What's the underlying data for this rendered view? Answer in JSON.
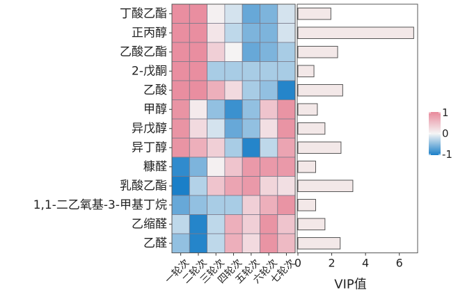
{
  "chart_data": [
    {
      "type": "heatmap",
      "rows": [
        "丁酸乙酯",
        "正丙醇",
        "乙酸乙酯",
        "2-戊酮",
        "乙酸",
        "甲醇",
        "异戊醇",
        "异丁醇",
        "糠醛",
        "乳酸乙酯",
        "1,1-二乙氧基-3-甲基丁烷",
        "乙缩醛",
        "乙醛"
      ],
      "columns": [
        "一轮次",
        "二轮次",
        "三轮次",
        "四轮次",
        "五轮次",
        "六轮次",
        "七轮次"
      ],
      "values": [
        [
          0.95,
          0.95,
          0.05,
          -0.15,
          -0.65,
          -0.55,
          -0.15
        ],
        [
          0.95,
          0.95,
          0.15,
          -0.25,
          -0.55,
          -0.55,
          -0.15
        ],
        [
          0.95,
          0.95,
          0.35,
          0.02,
          -0.65,
          -0.55,
          -0.35
        ],
        [
          0.95,
          0.95,
          -0.35,
          -0.35,
          -0.35,
          -0.35,
          -0.35
        ],
        [
          0.95,
          0.95,
          0.65,
          0.25,
          -0.35,
          -0.45,
          -0.95
        ],
        [
          0.9,
          0.1,
          -0.45,
          -0.85,
          -0.45,
          0.45,
          0.9
        ],
        [
          0.9,
          0.25,
          -0.15,
          -0.65,
          -0.45,
          0.2,
          0.9
        ],
        [
          0.9,
          0.65,
          0.35,
          -0.35,
          -0.95,
          -0.25,
          0.75
        ],
        [
          -0.9,
          -0.55,
          0.05,
          0.45,
          0.85,
          0.85,
          0.85
        ],
        [
          -1.0,
          -0.3,
          0.45,
          0.75,
          0.85,
          0.3,
          0.2
        ],
        [
          -0.65,
          -0.45,
          -0.35,
          -0.35,
          0.35,
          0.65,
          0.9
        ],
        [
          -0.25,
          -0.95,
          -0.25,
          0.65,
          0.35,
          0.9,
          0.45
        ],
        [
          -0.45,
          -0.95,
          -0.25,
          0.65,
          0.25,
          0.9,
          0.55
        ]
      ],
      "legend": {
        "ticks": [
          "1",
          "0",
          "-1"
        ],
        "max": 1,
        "min": -1,
        "position": "right"
      },
      "colors": {
        "high": "#e8899b",
        "mid": "#f5f5f5",
        "low": "#1a7fc8"
      }
    },
    {
      "type": "bar",
      "orientation": "horizontal",
      "categories": [
        "丁酸乙酯",
        "正丙醇",
        "乙酸乙酯",
        "2-戊酮",
        "乙酸",
        "甲醇",
        "异戊醇",
        "异丁醇",
        "糠醛",
        "乳酸乙酯",
        "1,1-二乙氧基-3-甲基丁烷",
        "乙缩醛",
        "乙醛"
      ],
      "values": [
        1.95,
        6.85,
        2.35,
        0.95,
        2.65,
        1.15,
        1.6,
        2.55,
        1.05,
        3.25,
        1.05,
        1.6,
        2.5
      ],
      "xlabel": "VIP值",
      "xticks": [
        "0",
        "2",
        "4",
        "6"
      ],
      "xlim": [
        0,
        7.0
      ],
      "bar_color": "#f3e8e8",
      "bar_edge": "#555555"
    }
  ]
}
